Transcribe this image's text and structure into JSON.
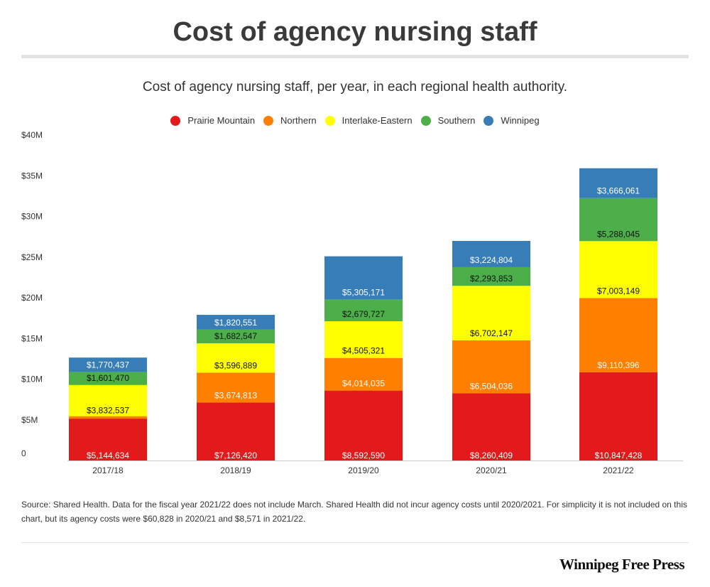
{
  "header": {
    "headline": "Cost of agency nursing staff",
    "subtitle": "Cost of agency nursing staff, per year, in each regional health authority."
  },
  "chart_data": {
    "type": "bar",
    "stacked": true,
    "categories": [
      "2017/18",
      "2018/19",
      "2019/20",
      "2020/21",
      "2021/22"
    ],
    "series": [
      {
        "name": "Prairie Mountain",
        "color": "#e31a1c",
        "values": [
          5144634,
          7126420,
          8592590,
          8260409,
          10847428
        ],
        "labels": [
          "$5,144,634",
          "$7,126,420",
          "$8,592,590",
          "$8,260,409",
          "$10,847,428"
        ]
      },
      {
        "name": "Northern",
        "color": "#ff7f00",
        "values": [
          300000,
          3674813,
          4014035,
          6504036,
          9110396
        ],
        "labels": [
          "",
          "$3,674,813",
          "$4,014,035",
          "$6,504,036",
          "$9,110,396"
        ]
      },
      {
        "name": "Interlake-Eastern",
        "color": "#ffff00",
        "values": [
          3832537,
          3596889,
          4505321,
          6702147,
          7003149
        ],
        "labels": [
          "$3,832,537",
          "$3,596,889",
          "$4,505,321",
          "$6,702,147",
          "$7,003,149"
        ]
      },
      {
        "name": "Southern",
        "color": "#4daf4a",
        "values": [
          1601470,
          1682547,
          2679727,
          2293853,
          5288045
        ],
        "labels": [
          "$1,601,470",
          "$1,682,547",
          "$2,679,727",
          "$2,293,853",
          "$5,288,045"
        ]
      },
      {
        "name": "Winnipeg",
        "color": "#377eb8",
        "values": [
          1770437,
          1820551,
          5305171,
          3224804,
          3666061
        ],
        "labels": [
          "$1,770,437",
          "$1,820,551",
          "$5,305,171",
          "$3,224,804",
          "$3,666,061"
        ]
      }
    ],
    "yticks": [
      "0",
      "$5M",
      "$10M",
      "$15M",
      "$20M",
      "$25M",
      "$30M",
      "$35M",
      "$40M"
    ],
    "ylim": [
      0,
      40000000
    ],
    "legend": "top-center",
    "grid": false
  },
  "footer": {
    "source": "Source: Shared Health.  Data for the fiscal year 2021/22 does not include March. Shared Health did not incur agency costs until 2020/2021. For simplicity it is not included on this chart, but its agency costs were $60,828 in 2020/21 and $8,571 in 2021/22.",
    "brand": "Winnipeg Free Press"
  }
}
